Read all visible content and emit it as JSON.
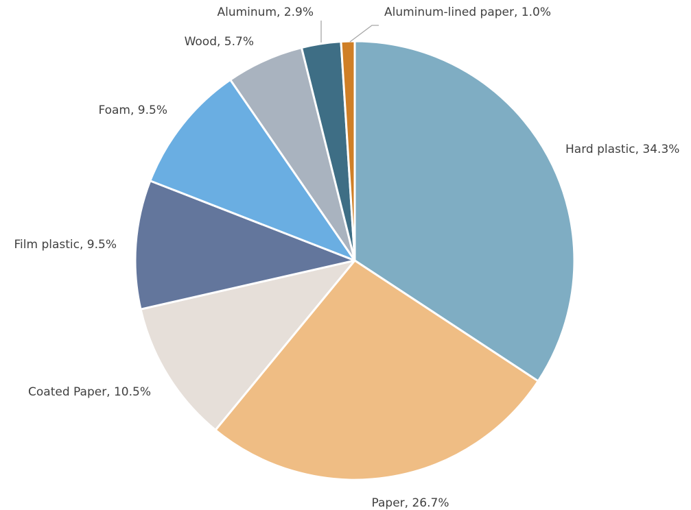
{
  "chart_data": {
    "type": "pie",
    "title": "",
    "categories": [
      "Hard plastic",
      "Paper",
      "Coated Paper",
      "Film plastic",
      "Foam",
      "Wood",
      "Aluminum",
      "Aluminum-lined paper"
    ],
    "values": [
      34.3,
      26.7,
      10.5,
      9.5,
      9.5,
      5.7,
      2.9,
      1.0
    ],
    "labels": [
      "Hard plastic, 34.3%",
      "Paper, 26.7%",
      "Coated Paper, 10.5%",
      "Film plastic, 9.5%",
      "Foam, 9.5%",
      "Wood, 5.7%",
      "Aluminum, 2.9%",
      "Aluminum-lined paper, 1.0%"
    ],
    "colors": [
      "#7FADC3",
      "#EFBD84",
      "#E6DFD9",
      "#63769C",
      "#6AAEE2",
      "#A9B3BF",
      "#3E6E85",
      "#CF7F27"
    ],
    "start_angle_deg": 0,
    "direction": "clockwise",
    "legend": "none"
  }
}
